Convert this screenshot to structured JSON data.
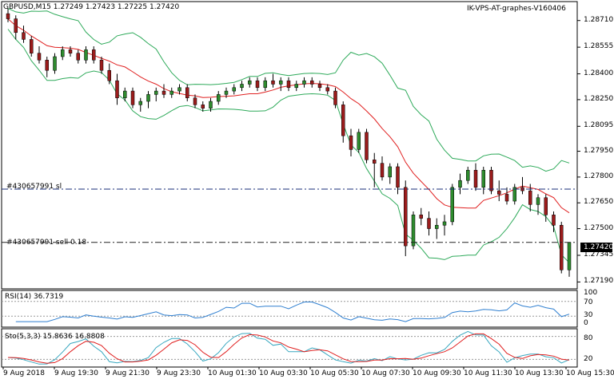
{
  "header": {
    "symbol_info": "GBPUSD,M15  1.27249 1.27423 1.27225 1.27420",
    "indicator_name": "IK-VPS-AT-graphes-V160406"
  },
  "order_lines": {
    "sl_label": "#430657991 sl",
    "sell_label": "#430657991 sell 0.18"
  },
  "current_price": "1.27420",
  "colors": {
    "bull": "#2e8b2e",
    "bear": "#9b1c1c",
    "ma": "#e02020",
    "bands": "#2eaa5a",
    "order_line": "#1a2e7a",
    "rsi_line": "#2f7fd0",
    "sto_main": "#39a8c0",
    "sto_signal": "#e02020"
  },
  "rsi": {
    "label": "RSI(14) 36.7319",
    "levels": [
      "100",
      "70",
      "30",
      "0"
    ]
  },
  "sto": {
    "label": "Sto(5,3,3) 15.8636 16.8808",
    "levels": [
      "80",
      "20"
    ]
  },
  "chart_data": {
    "type": "candlestick",
    "symbol": "GBPUSD",
    "timeframe": "M15",
    "price_ticks": [
      "1.28710",
      "1.28555",
      "1.28400",
      "1.28250",
      "1.28095",
      "1.27950",
      "1.27800",
      "1.27650",
      "1.27500",
      "1.27345",
      "1.27190"
    ],
    "price_range": [
      1.2715,
      1.2882
    ],
    "sl_level": 1.2773,
    "sell_level": 1.2742,
    "time_labels": [
      "9 Aug 2018",
      "9 Aug 19:30",
      "9 Aug 21:30",
      "9 Aug 23:30",
      "10 Aug 01:30",
      "10 Aug 03:30",
      "10 Aug 05:30",
      "10 Aug 07:30",
      "10 Aug 09:30",
      "10 Aug 11:30",
      "10 Aug 13:30",
      "10 Aug 15:30"
    ],
    "candles": [
      [
        1.2875,
        1.2878,
        1.287,
        1.2872
      ],
      [
        1.2872,
        1.2874,
        1.286,
        1.2864
      ],
      [
        1.2864,
        1.2868,
        1.2858,
        1.286
      ],
      [
        1.286,
        1.2862,
        1.285,
        1.2852
      ],
      [
        1.2852,
        1.2856,
        1.2846,
        1.2848
      ],
      [
        1.2848,
        1.285,
        1.2838,
        1.2842
      ],
      [
        1.2842,
        1.2852,
        1.284,
        1.285
      ],
      [
        1.285,
        1.2856,
        1.2848,
        1.2854
      ],
      [
        1.2854,
        1.2856,
        1.285,
        1.2852
      ],
      [
        1.2852,
        1.2854,
        1.2846,
        1.2848
      ],
      [
        1.2848,
        1.2856,
        1.2846,
        1.2854
      ],
      [
        1.2854,
        1.2856,
        1.2846,
        1.2848
      ],
      [
        1.2848,
        1.285,
        1.284,
        1.2842
      ],
      [
        1.2842,
        1.2846,
        1.2834,
        1.2836
      ],
      [
        1.2836,
        1.284,
        1.2822,
        1.2826
      ],
      [
        1.2826,
        1.2832,
        1.2824,
        1.283
      ],
      [
        1.283,
        1.2832,
        1.282,
        1.2822
      ],
      [
        1.2822,
        1.2826,
        1.2818,
        1.2824
      ],
      [
        1.2824,
        1.283,
        1.282,
        1.2828
      ],
      [
        1.2828,
        1.2832,
        1.2824,
        1.283
      ],
      [
        1.283,
        1.2834,
        1.2826,
        1.2828
      ],
      [
        1.2828,
        1.2832,
        1.2826,
        1.283
      ],
      [
        1.283,
        1.2834,
        1.2828,
        1.2832
      ],
      [
        1.2832,
        1.2834,
        1.2824,
        1.2826
      ],
      [
        1.2826,
        1.2828,
        1.282,
        1.2822
      ],
      [
        1.2822,
        1.2824,
        1.2818,
        1.282
      ],
      [
        1.282,
        1.2826,
        1.2818,
        1.2824
      ],
      [
        1.2824,
        1.283,
        1.2822,
        1.2828
      ],
      [
        1.2828,
        1.2832,
        1.2826,
        1.283
      ],
      [
        1.283,
        1.2834,
        1.2828,
        1.2832
      ],
      [
        1.2832,
        1.2836,
        1.283,
        1.2834
      ],
      [
        1.2834,
        1.2838,
        1.2832,
        1.2836
      ],
      [
        1.2836,
        1.2838,
        1.283,
        1.2832
      ],
      [
        1.2832,
        1.2838,
        1.283,
        1.2836
      ],
      [
        1.2836,
        1.284,
        1.2832,
        1.2834
      ],
      [
        1.2834,
        1.2838,
        1.283,
        1.2836
      ],
      [
        1.2836,
        1.2838,
        1.283,
        1.2832
      ],
      [
        1.2832,
        1.2836,
        1.283,
        1.2834
      ],
      [
        1.2834,
        1.2838,
        1.2832,
        1.2836
      ],
      [
        1.2836,
        1.2838,
        1.2832,
        1.2834
      ],
      [
        1.2834,
        1.2836,
        1.283,
        1.2832
      ],
      [
        1.2832,
        1.2834,
        1.2828,
        1.283
      ],
      [
        1.283,
        1.2832,
        1.282,
        1.2822
      ],
      [
        1.2822,
        1.2824,
        1.28,
        1.2804
      ],
      [
        1.2804,
        1.2808,
        1.2792,
        1.2796
      ],
      [
        1.2796,
        1.2808,
        1.2794,
        1.2806
      ],
      [
        1.2806,
        1.2808,
        1.2788,
        1.279
      ],
      [
        1.279,
        1.2794,
        1.2774,
        1.2788
      ],
      [
        1.2788,
        1.2792,
        1.2778,
        1.278
      ],
      [
        1.278,
        1.2788,
        1.2776,
        1.2786
      ],
      [
        1.2786,
        1.2788,
        1.277,
        1.2774
      ],
      [
        1.2774,
        1.2778,
        1.2734,
        1.274
      ],
      [
        1.274,
        1.276,
        1.2738,
        1.2758
      ],
      [
        1.2758,
        1.2762,
        1.2752,
        1.2756
      ],
      [
        1.2756,
        1.276,
        1.2746,
        1.275
      ],
      [
        1.275,
        1.2756,
        1.2744,
        1.2752
      ],
      [
        1.2752,
        1.2758,
        1.2746,
        1.2754
      ],
      [
        1.2754,
        1.2776,
        1.2752,
        1.2774
      ],
      [
        1.2774,
        1.2782,
        1.277,
        1.2778
      ],
      [
        1.2778,
        1.2786,
        1.2776,
        1.2784
      ],
      [
        1.2784,
        1.2788,
        1.2772,
        1.2774
      ],
      [
        1.2774,
        1.2786,
        1.277,
        1.2784
      ],
      [
        1.2784,
        1.2786,
        1.277,
        1.2772
      ],
      [
        1.2772,
        1.2778,
        1.2766,
        1.277
      ],
      [
        1.277,
        1.2774,
        1.2764,
        1.2766
      ],
      [
        1.2766,
        1.2776,
        1.2764,
        1.2774
      ],
      [
        1.2774,
        1.278,
        1.277,
        1.2772
      ],
      [
        1.2772,
        1.2776,
        1.276,
        1.2764
      ],
      [
        1.2764,
        1.277,
        1.2758,
        1.2768
      ],
      [
        1.2768,
        1.277,
        1.2754,
        1.2758
      ],
      [
        1.2758,
        1.276,
        1.2748,
        1.2752
      ],
      [
        1.2752,
        1.2754,
        1.2724,
        1.2726
      ],
      [
        1.2726,
        1.2742,
        1.2722,
        1.2742
      ]
    ]
  }
}
